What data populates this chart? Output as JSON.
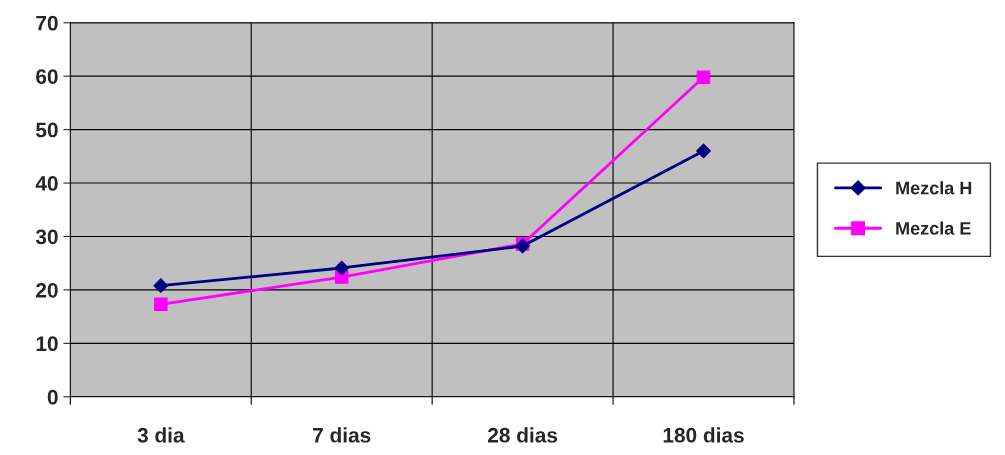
{
  "chart_data": {
    "type": "line",
    "categories": [
      "3 dia",
      "7 dias",
      "28 dias",
      "180 dias"
    ],
    "series": [
      {
        "name": "Mezcla H",
        "color": "#000080",
        "marker": "diamond",
        "values": [
          20.8,
          24.1,
          28.2,
          46
        ]
      },
      {
        "name": "Mezcla E",
        "color": "#ff00ff",
        "marker": "square",
        "values": [
          17.3,
          22.4,
          28.6,
          59.8
        ]
      }
    ],
    "ylim": [
      0,
      70
    ],
    "yticks": [
      0,
      10,
      20,
      30,
      40,
      50,
      60,
      70
    ],
    "grid": true,
    "legend": "right"
  }
}
